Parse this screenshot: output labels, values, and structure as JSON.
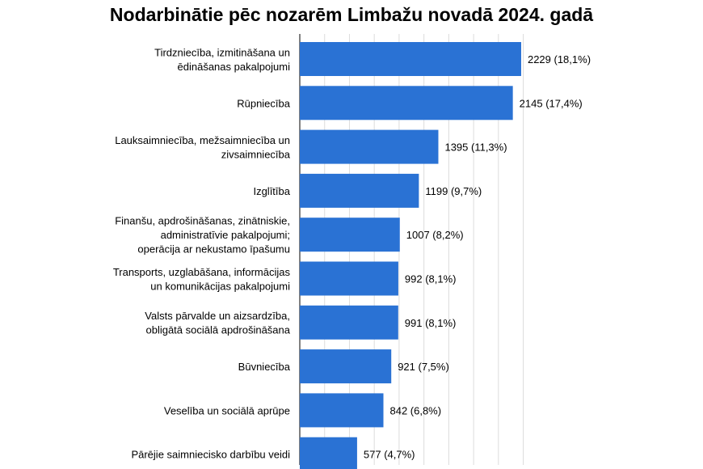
{
  "chart_data": {
    "type": "bar",
    "orientation": "horizontal",
    "title": "Nodarbinātie pēc nozarēm Limbažu novadā 2024. gadā",
    "xlabel": "",
    "ylabel": "",
    "xlim": [
      0,
      2400
    ],
    "grid": true,
    "bar_color": "#2a72d4",
    "categories": [
      [
        "Tirdzniecība, izmitināšana un",
        "ēdināšanas pakalpojumi"
      ],
      [
        "Rūpniecība"
      ],
      [
        "Lauksaimniecība, mežsaimniecība un",
        "zivsaimniecība"
      ],
      [
        "Izglītība"
      ],
      [
        "Finanšu, apdrošināšanas, zinātniskie,",
        "administratīvie pakalpojumi;",
        "operācija ar nekustamo īpašumu"
      ],
      [
        "Transports, uzglabāšana, informācijas",
        "un komunikācijas pakalpojumi"
      ],
      [
        "Valsts pārvalde un aizsardzība,",
        "obligātā sociālā apdrošināšana"
      ],
      [
        "Būvniecība"
      ],
      [
        "Veselība un sociālā aprūpe"
      ],
      [
        "Pārējie saimniecisko darbību veidi"
      ]
    ],
    "values": [
      2229,
      2145,
      1395,
      1199,
      1007,
      992,
      991,
      921,
      842,
      577
    ],
    "percents": [
      "18,1%",
      "17,4%",
      "11,3%",
      "9,7%",
      "8,2%",
      "8,1%",
      "8,1%",
      "7,5%",
      "6,8%",
      "4,7%"
    ]
  }
}
